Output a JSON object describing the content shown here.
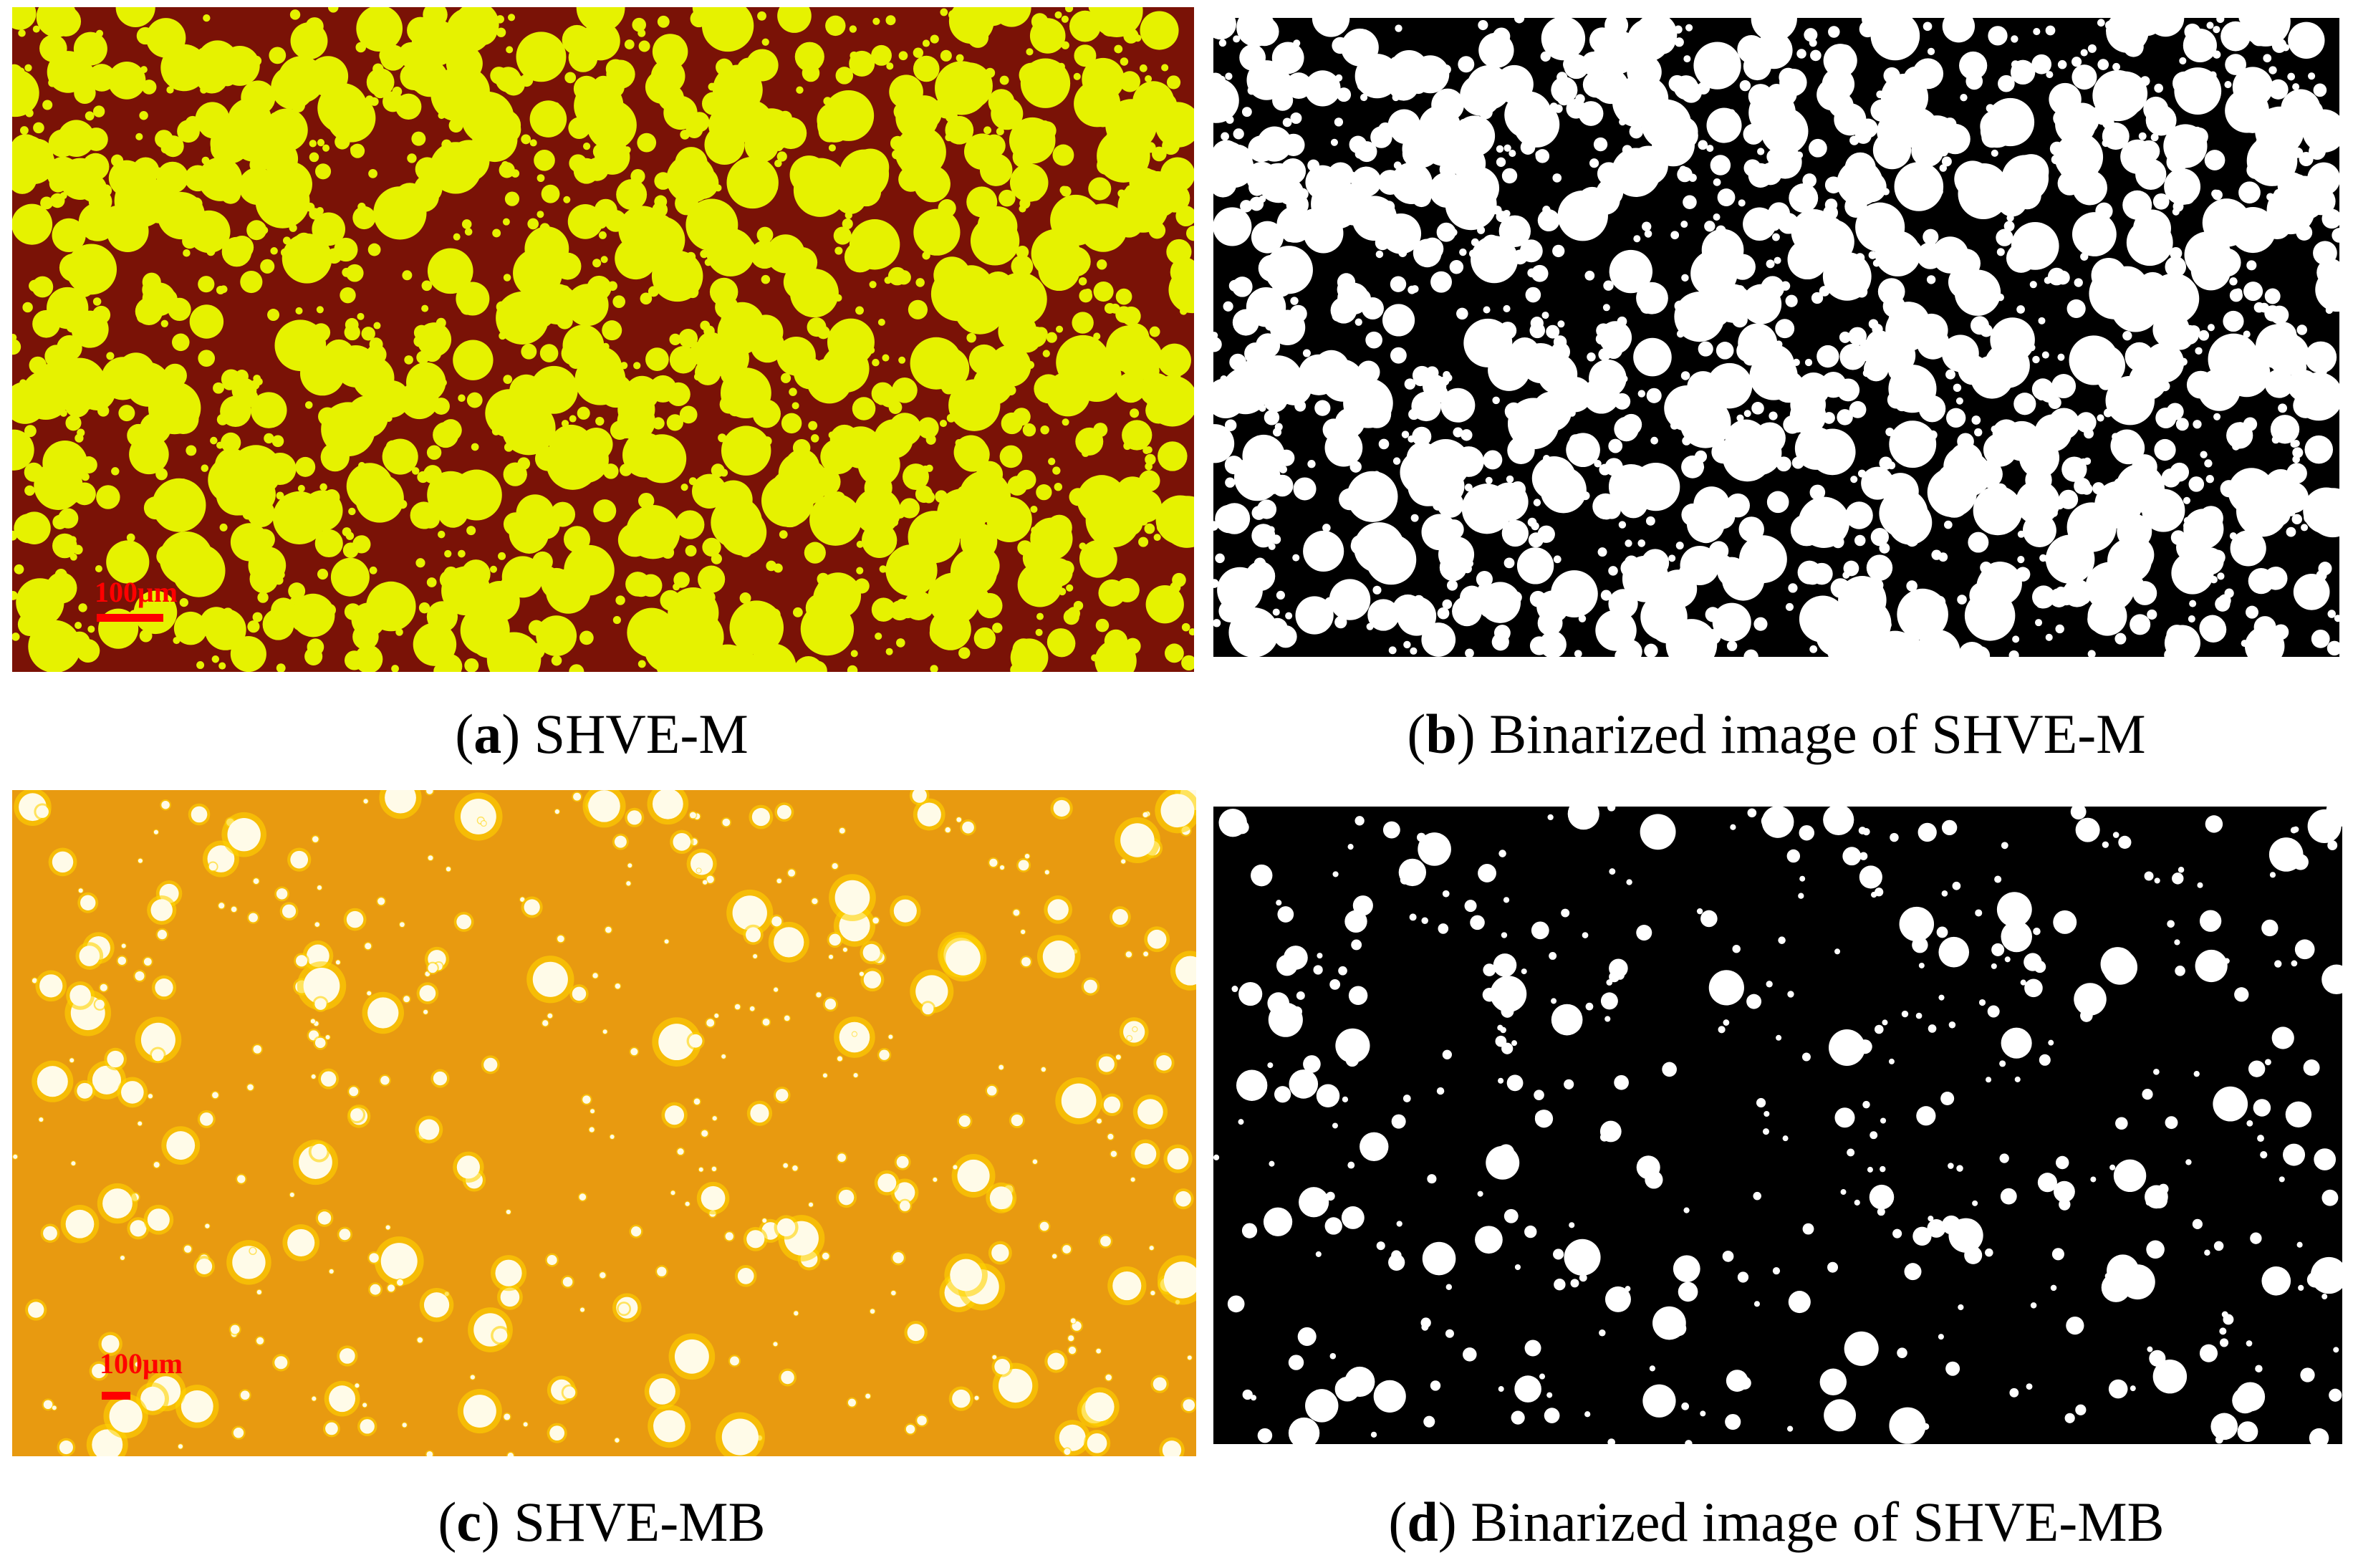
{
  "figure": {
    "panels": [
      {
        "id": "a",
        "letter": "a",
        "caption": "SHVE-M",
        "scale_bar": "100μm",
        "background": "#7a1206",
        "droplet_color": "#e6f200",
        "kind": "micrograph"
      },
      {
        "id": "b",
        "letter": "b",
        "caption": "Binarized image of SHVE-M",
        "background": "#000000",
        "droplet_color": "#ffffff",
        "kind": "binarized"
      },
      {
        "id": "c",
        "letter": "c",
        "caption": "SHVE-MB",
        "scale_bar": "100μm",
        "background": "#e89a10",
        "droplet_color": "#fffbe8",
        "kind": "micrograph"
      },
      {
        "id": "d",
        "letter": "d",
        "caption": "Binarized image of SHVE-MB",
        "background": "#000000",
        "droplet_color": "#ffffff",
        "kind": "binarized"
      }
    ]
  }
}
